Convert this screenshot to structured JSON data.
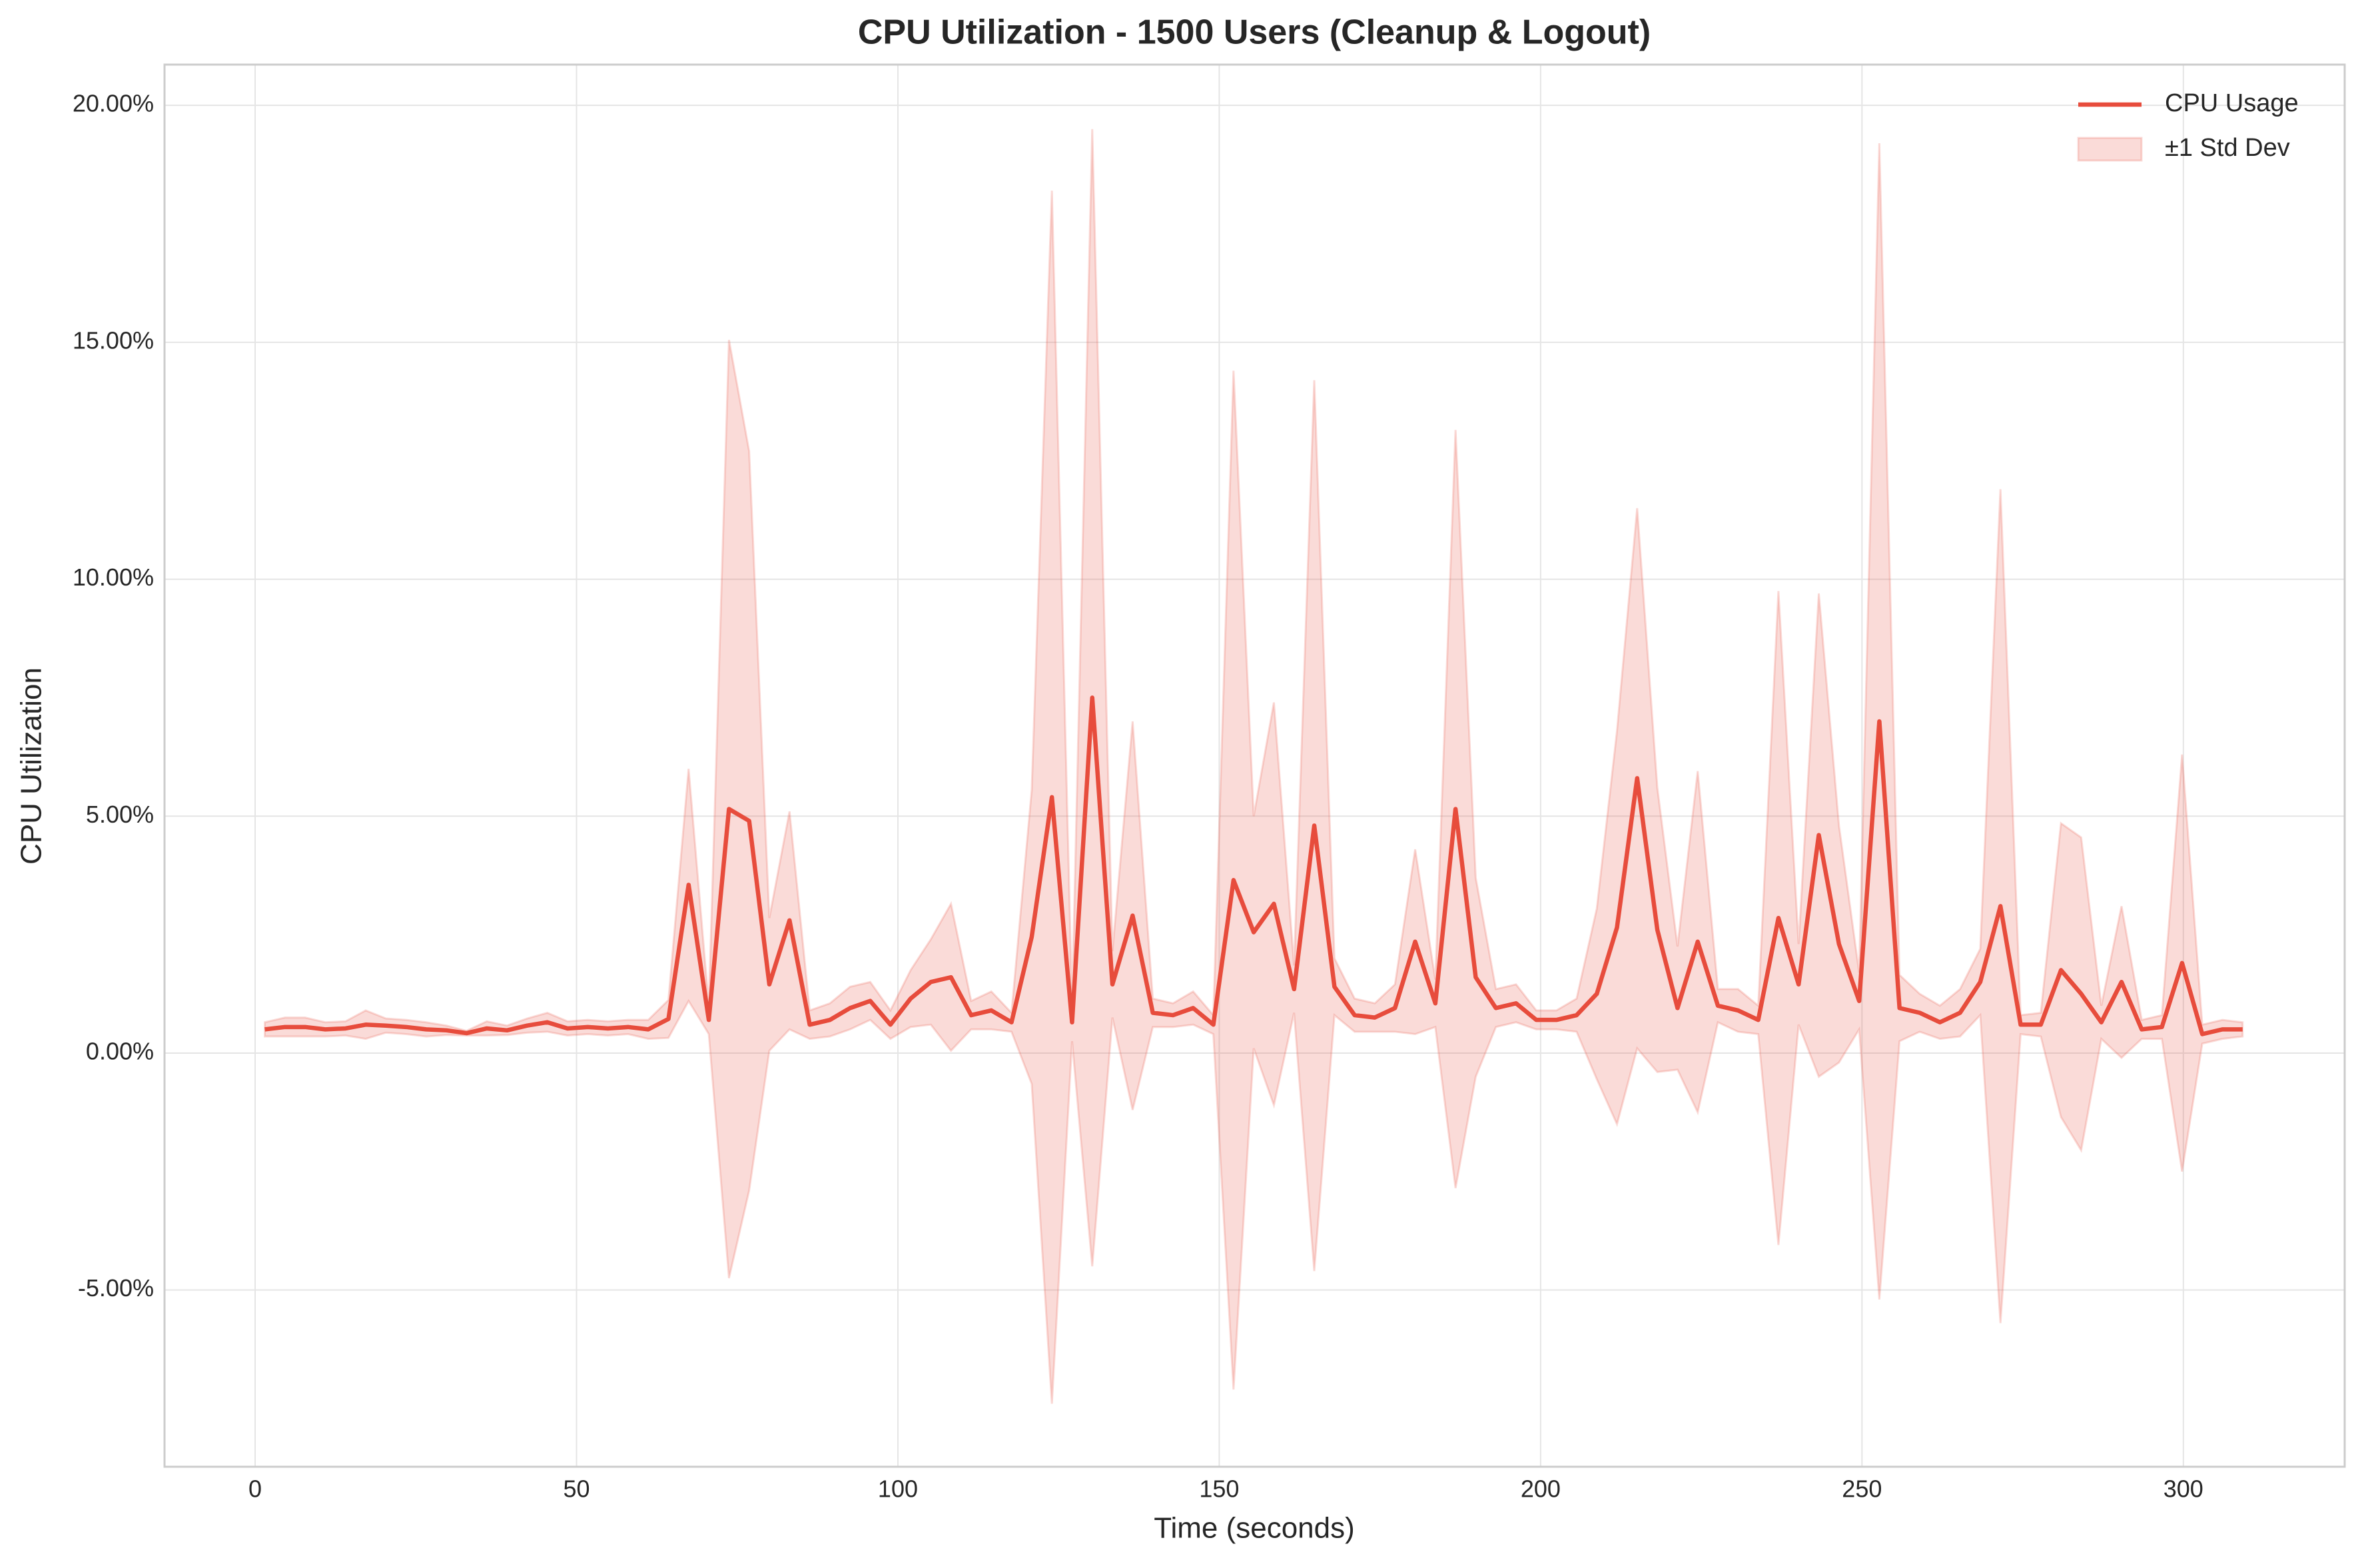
{
  "chart_data": {
    "type": "line",
    "title": "CPU Utilization - 1500 Users (Cleanup & Logout)",
    "x_label": "Time (seconds)",
    "y_label": "CPU Utilization",
    "x": [
      1.5,
      4.64,
      7.78,
      10.92,
      14.06,
      17.2,
      20.34,
      23.48,
      26.62,
      29.76,
      32.9,
      36.04,
      39.18,
      42.32,
      45.46,
      48.6,
      51.74,
      54.88,
      58.02,
      61.16,
      64.3,
      67.44,
      70.58,
      73.72,
      76.86,
      80,
      83.14,
      86.28,
      89.42,
      92.56,
      95.7,
      98.84,
      101.98,
      105.12,
      108.26,
      111.4,
      114.54,
      117.68,
      120.82,
      123.96,
      127.1,
      130.24,
      133.38,
      136.52,
      139.66,
      142.8,
      145.94,
      149.08,
      152.22,
      155.36,
      158.5,
      161.64,
      164.78,
      167.92,
      171.06,
      174.2,
      177.34,
      180.48,
      183.62,
      186.76,
      189.9,
      193.04,
      196.18,
      199.32,
      202.46,
      205.6,
      208.74,
      211.88,
      215.02,
      218.16,
      221.3,
      224.44,
      227.58,
      230.72,
      233.86,
      237,
      240.14,
      243.28,
      246.42,
      249.56,
      252.7,
      255.84,
      258.98,
      262.12,
      265.26,
      268.4,
      271.54,
      274.68,
      277.82,
      280.96,
      284.1,
      287.24,
      290.38,
      293.52,
      296.66,
      299.8,
      302.94,
      306.08,
      309.22
    ],
    "series": [
      {
        "name": "CPU Usage",
        "color": "#e74c3c",
        "values": [
          0.5,
          0.55,
          0.55,
          0.5,
          0.52,
          0.6,
          0.58,
          0.55,
          0.5,
          0.48,
          0.42,
          0.52,
          0.48,
          0.58,
          0.65,
          0.52,
          0.55,
          0.52,
          0.55,
          0.5,
          0.72,
          3.55,
          0.7,
          5.15,
          4.9,
          1.45,
          2.8,
          0.6,
          0.7,
          0.95,
          1.1,
          0.6,
          1.15,
          1.5,
          1.6,
          0.8,
          0.9,
          0.65,
          2.45,
          5.4,
          0.65,
          7.5,
          1.45,
          2.9,
          0.85,
          0.8,
          0.95,
          0.6,
          3.65,
          2.55,
          3.15,
          1.35,
          4.8,
          1.4,
          0.8,
          0.75,
          0.95,
          2.35,
          1.05,
          5.15,
          1.6,
          0.95,
          1.05,
          0.7,
          0.7,
          0.8,
          1.25,
          2.65,
          5.8,
          2.6,
          0.95,
          2.35,
          1.0,
          0.9,
          0.7,
          2.85,
          1.45,
          4.6,
          2.3,
          1.1,
          7.0,
          0.95,
          0.85,
          0.65,
          0.85,
          1.5,
          3.1,
          0.6,
          0.6,
          1.75,
          1.25,
          0.65,
          1.5,
          0.5,
          0.55,
          1.9,
          0.4,
          0.5,
          0.5
        ]
      }
    ],
    "band": {
      "name": "±1 Std Dev",
      "color": "#e74c3c",
      "values": [
        0.15,
        0.2,
        0.2,
        0.15,
        0.15,
        0.3,
        0.15,
        0.15,
        0.15,
        0.1,
        0.05,
        0.15,
        0.1,
        0.15,
        0.2,
        0.15,
        0.15,
        0.15,
        0.15,
        0.2,
        0.4,
        2.45,
        0.3,
        9.9,
        7.8,
        1.4,
        2.3,
        0.3,
        0.35,
        0.45,
        0.4,
        0.3,
        0.6,
        0.9,
        1.55,
        0.3,
        0.4,
        0.2,
        3.1,
        12.8,
        0.4,
        12.0,
        0.7,
        4.1,
        0.3,
        0.25,
        0.35,
        0.2,
        10.75,
        2.45,
        4.25,
        0.5,
        9.4,
        0.6,
        0.35,
        0.3,
        0.5,
        1.95,
        0.5,
        8.0,
        2.1,
        0.4,
        0.4,
        0.2,
        0.2,
        0.35,
        1.8,
        4.15,
        5.7,
        3.0,
        1.3,
        3.6,
        0.35,
        0.45,
        0.3,
        6.9,
        0.85,
        5.1,
        2.5,
        0.6,
        12.2,
        0.7,
        0.4,
        0.35,
        0.5,
        0.7,
        8.8,
        0.2,
        0.25,
        3.1,
        3.3,
        0.35,
        1.6,
        0.2,
        0.25,
        4.4,
        0.2,
        0.2,
        0.15
      ]
    },
    "xlim": [
      -14.1,
      325.1
    ],
    "ylim": [
      -8.73,
      20.86
    ],
    "xticks": [
      0,
      50,
      100,
      150,
      200,
      250,
      300
    ],
    "yticks": [
      {
        "value": -5,
        "label": "-5.00%"
      },
      {
        "value": 0,
        "label": "0.00%"
      },
      {
        "value": 5,
        "label": "5.00%"
      },
      {
        "value": 10,
        "label": "10.00%"
      },
      {
        "value": 15,
        "label": "15.00%"
      },
      {
        "value": 20,
        "label": "20.00%"
      }
    ],
    "grid": true,
    "legend": "upper right"
  }
}
